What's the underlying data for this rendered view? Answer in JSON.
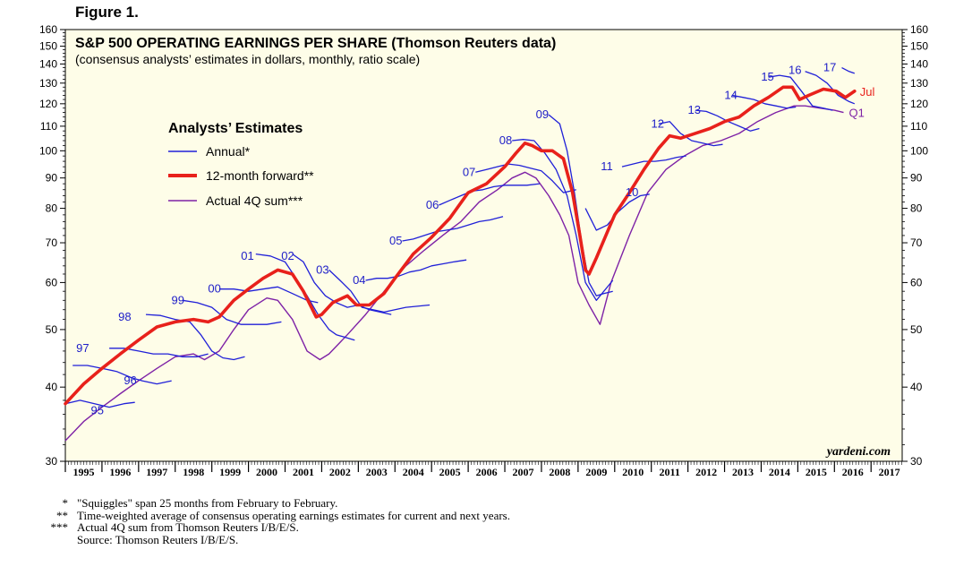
{
  "figure_label": "Figure 1.",
  "watermark": "yardeni.com",
  "colors": {
    "plot_bg": "#fefde8",
    "annual": "#2020d8",
    "forward": "#e8211b",
    "actual": "#7e22a6",
    "annual_label": "#2020c8",
    "series_label_red": "#e8211b",
    "series_label_purple": "#7e22a6"
  },
  "footnotes": [
    {
      "mark": "*",
      "text": "\"Squiggles\" span 25 months from February to February."
    },
    {
      "mark": "**",
      "text": "Time-weighted average of consensus operating earnings estimates for current and next years."
    },
    {
      "mark": "***",
      "text": "Actual 4Q sum from Thomson Reuters I/B/E/S."
    },
    {
      "mark": "",
      "text": "Source: Thomson Reuters I/B/E/S."
    }
  ],
  "chart_data": {
    "type": "line",
    "title": "S&P 500 OPERATING EARNINGS PER SHARE (Thomson Reuters data)",
    "subtitle": "(consensus analysts’ estimates in dollars, monthly, ratio scale)",
    "scale": "log",
    "ylim": [
      30,
      160
    ],
    "y_ticks": [
      30,
      40,
      50,
      60,
      70,
      80,
      90,
      100,
      110,
      120,
      130,
      140,
      150,
      160
    ],
    "xlim": [
      1995.0,
      2017.85
    ],
    "x_ticks": [
      "1995",
      "1996",
      "1997",
      "1998",
      "1999",
      "2000",
      "2001",
      "2002",
      "2003",
      "2004",
      "2005",
      "2006",
      "2007",
      "2008",
      "2009",
      "2010",
      "2011",
      "2012",
      "2013",
      "2014",
      "2015",
      "2016",
      "2017"
    ],
    "legend": {
      "title": "Analysts’ Estimates",
      "position": "upper-left",
      "entries": [
        {
          "label": "Annual*",
          "color": "#2020d8"
        },
        {
          "label": "12-month forward**",
          "color": "#e8211b"
        },
        {
          "label": "Actual 4Q sum***",
          "color": "#7e22a6"
        }
      ]
    },
    "end_labels": [
      {
        "text": "Jul",
        "x": 2016.55,
        "y": 126,
        "color": "#e8211b"
      },
      {
        "text": "Q1",
        "x": 2016.25,
        "y": 116,
        "color": "#7e22a6"
      }
    ],
    "forward": {
      "name": "12-month forward**",
      "x": [
        1995.0,
        1995.5,
        1996.0,
        1996.5,
        1997.0,
        1997.5,
        1998.0,
        1998.5,
        1998.9,
        1999.2,
        1999.6,
        2000.0,
        2000.4,
        2000.8,
        2001.2,
        2001.5,
        2001.85,
        2002.0,
        2002.3,
        2002.7,
        2002.95,
        2003.3,
        2003.7,
        2004.0,
        2004.5,
        2005.0,
        2005.5,
        2006.0,
        2006.5,
        2007.0,
        2007.3,
        2007.55,
        2007.75,
        2008.0,
        2008.3,
        2008.6,
        2008.85,
        2009.05,
        2009.2,
        2009.3,
        2009.5,
        2009.8,
        2010.0,
        2010.4,
        2010.8,
        2011.2,
        2011.5,
        2011.8,
        2012.2,
        2012.6,
        2013.0,
        2013.4,
        2013.8,
        2014.2,
        2014.6,
        2014.85,
        2015.05,
        2015.3,
        2015.7,
        2016.05,
        2016.3,
        2016.55
      ],
      "y": [
        37.5,
        40.5,
        43,
        45.5,
        48,
        50.5,
        51.5,
        52,
        51.5,
        52.5,
        56,
        58.5,
        61,
        63,
        62,
        58,
        52.5,
        53,
        55.5,
        57,
        55,
        55,
        57.5,
        61,
        67,
        71.5,
        77,
        85,
        88,
        94,
        99,
        103,
        102,
        100,
        100,
        97,
        85,
        72,
        63,
        62,
        66,
        73,
        78,
        85,
        93,
        101,
        106,
        105,
        107,
        109,
        112,
        114,
        119,
        123,
        128,
        128,
        122,
        124,
        127,
        126,
        123,
        126
      ]
    },
    "actual": {
      "name": "Actual 4Q sum***",
      "x": [
        1995.0,
        1995.5,
        1996.0,
        1996.5,
        1997.0,
        1997.5,
        1998.0,
        1998.5,
        1998.8,
        1999.2,
        1999.6,
        2000.0,
        2000.5,
        2000.8,
        2001.2,
        2001.6,
        2001.95,
        2002.2,
        2002.7,
        2003.2,
        2003.8,
        2004.3,
        2004.8,
        2005.3,
        2005.8,
        2006.3,
        2006.8,
        2007.2,
        2007.55,
        2007.85,
        2008.2,
        2008.5,
        2008.75,
        2009.0,
        2009.3,
        2009.6,
        2009.9,
        2010.4,
        2010.9,
        2011.4,
        2011.9,
        2012.4,
        2012.9,
        2013.4,
        2013.9,
        2014.4,
        2014.9,
        2015.2,
        2015.6,
        2016.0,
        2016.25
      ],
      "y": [
        32.5,
        35,
        37,
        39,
        41,
        43,
        45,
        45.5,
        44.5,
        46,
        50,
        54,
        56.5,
        56,
        52,
        46,
        44.5,
        45.5,
        49,
        53,
        59,
        64,
        68,
        72,
        76,
        82,
        86,
        90,
        92,
        90,
        84,
        78,
        72,
        60,
        55,
        51,
        60,
        72,
        85,
        93,
        98,
        102,
        104,
        107,
        112,
        116,
        119,
        119,
        118,
        117,
        116
      ]
    },
    "annual": [
      {
        "label": "95",
        "label_x": 1996.05,
        "label_y": 36.5,
        "x": [
          1995.0,
          1995.4,
          1995.8,
          1996.2,
          1996.6,
          1996.9
        ],
        "y": [
          37.5,
          38,
          37.5,
          37,
          37.5,
          37.7
        ]
      },
      {
        "label": "96",
        "label_x": 1996.95,
        "label_y": 41,
        "x": [
          1995.2,
          1995.6,
          1996.0,
          1996.4,
          1996.8,
          1997.1,
          1997.5,
          1997.9
        ],
        "y": [
          43.5,
          43.5,
          43,
          42.5,
          41.5,
          41,
          40.5,
          41
        ]
      },
      {
        "label": "97",
        "label_x": 1995.65,
        "label_y": 46.5,
        "x": [
          1996.2,
          1996.6,
          1997.0,
          1997.4,
          1997.8,
          1998.2,
          1998.6,
          1998.9
        ],
        "y": [
          46.5,
          46.5,
          46,
          45.5,
          45.5,
          45,
          45,
          45.5
        ]
      },
      {
        "label": "98",
        "label_x": 1996.8,
        "label_y": 52.5,
        "x": [
          1997.2,
          1997.6,
          1998.0,
          1998.4,
          1998.7,
          1999.0,
          1999.3,
          1999.6,
          1999.9
        ],
        "y": [
          53,
          52.8,
          52,
          51.5,
          49,
          46,
          44.8,
          44.5,
          45
        ]
      },
      {
        "label": "99",
        "label_x": 1998.25,
        "label_y": 56,
        "x": [
          1998.2,
          1998.6,
          1999.0,
          1999.4,
          1999.8,
          2000.2,
          2000.5,
          2000.9
        ],
        "y": [
          56,
          55.5,
          54.5,
          52,
          51,
          51,
          51,
          51.5
        ]
      },
      {
        "label": "00",
        "label_x": 1999.25,
        "label_y": 58.5,
        "x": [
          1999.2,
          1999.6,
          2000.0,
          2000.4,
          2000.8,
          2001.2,
          2001.6,
          2001.9
        ],
        "y": [
          58.5,
          58.5,
          58,
          58.5,
          59,
          57.5,
          56,
          55.5
        ]
      },
      {
        "label": "01",
        "label_x": 2000.15,
        "label_y": 66.5,
        "x": [
          2000.2,
          2000.6,
          2001.0,
          2001.3,
          2001.6,
          2001.9,
          2002.2,
          2002.4,
          2002.9
        ],
        "y": [
          67,
          66.5,
          65,
          61,
          57,
          53,
          50,
          49,
          48
        ]
      },
      {
        "label": "02",
        "label_x": 2001.25,
        "label_y": 66.5,
        "x": [
          2001.2,
          2001.5,
          2001.8,
          2002.1,
          2002.4,
          2002.7,
          2003.0,
          2003.3,
          2003.9
        ],
        "y": [
          67,
          65,
          60,
          57,
          55.5,
          54.5,
          55,
          54,
          53
        ]
      },
      {
        "label": "03",
        "label_x": 2002.2,
        "label_y": 63,
        "x": [
          2002.2,
          2002.5,
          2002.8,
          2003.1,
          2003.4,
          2003.7,
          2004.0,
          2004.3,
          2004.95
        ],
        "y": [
          63,
          60.5,
          58,
          54.5,
          54,
          53.5,
          54,
          54.5,
          55
        ]
      },
      {
        "label": "04",
        "label_x": 2003.2,
        "label_y": 60.5,
        "x": [
          2003.2,
          2003.5,
          2003.8,
          2004.1,
          2004.4,
          2004.7,
          2005.0,
          2005.3,
          2005.6,
          2005.95
        ],
        "y": [
          60.5,
          61,
          61,
          61.5,
          62.5,
          63,
          64,
          64.5,
          65,
          65.5
        ]
      },
      {
        "label": "05",
        "label_x": 2004.2,
        "label_y": 70.5,
        "x": [
          2004.2,
          2004.5,
          2004.8,
          2005.1,
          2005.4,
          2005.7,
          2006.0,
          2006.3,
          2006.6,
          2006.95
        ],
        "y": [
          70.5,
          71,
          72,
          73,
          73.5,
          74,
          75,
          76,
          76.5,
          77.5
        ]
      },
      {
        "label": "06",
        "label_x": 2005.2,
        "label_y": 81,
        "x": [
          2005.2,
          2005.5,
          2005.8,
          2006.1,
          2006.4,
          2006.7,
          2007.0,
          2007.3,
          2007.6,
          2007.95
        ],
        "y": [
          81,
          82.5,
          84,
          85.5,
          86,
          87,
          87.5,
          87.5,
          87.5,
          88
        ]
      },
      {
        "label": "07",
        "label_x": 2006.2,
        "label_y": 92,
        "x": [
          2006.2,
          2006.5,
          2006.8,
          2007.1,
          2007.4,
          2007.7,
          2008.0,
          2008.3,
          2008.6,
          2008.95
        ],
        "y": [
          92,
          93,
          94,
          95,
          94.5,
          93.5,
          92.5,
          89,
          85,
          86
        ]
      },
      {
        "label": "08",
        "label_x": 2007.2,
        "label_y": 104,
        "x": [
          2007.2,
          2007.5,
          2007.8,
          2008.1,
          2008.4,
          2008.7,
          2008.95,
          2009.2,
          2009.5,
          2009.95
        ],
        "y": [
          104,
          104.5,
          104,
          99,
          93,
          84,
          72,
          60,
          56,
          60.5
        ]
      },
      {
        "label": "09",
        "label_x": 2008.2,
        "label_y": 115,
        "x": [
          2008.2,
          2008.5,
          2008.7,
          2008.9,
          2009.1,
          2009.3,
          2009.5,
          2009.7,
          2009.95
        ],
        "y": [
          115,
          111,
          100,
          85,
          70,
          60,
          57,
          57.5,
          58
        ]
      },
      {
        "label": "10",
        "label_x": 2010.65,
        "label_y": 85,
        "x": [
          2009.2,
          2009.5,
          2009.8,
          2010.1,
          2010.4,
          2010.7,
          2010.95
        ],
        "y": [
          80,
          73.5,
          75,
          79,
          82,
          84,
          84.5
        ]
      },
      {
        "label": "11",
        "label_x": 2009.95,
        "label_y": 94,
        "x": [
          2010.2,
          2010.5,
          2010.8,
          2011.1,
          2011.4,
          2011.7,
          2011.95
        ],
        "y": [
          94,
          95,
          96,
          96,
          96.5,
          97.5,
          98
        ]
      },
      {
        "label": "12",
        "label_x": 2011.35,
        "label_y": 111,
        "x": [
          2011.2,
          2011.5,
          2011.8,
          2012.1,
          2012.4,
          2012.7,
          2012.95
        ],
        "y": [
          111,
          112,
          107,
          104,
          103,
          102,
          102.5
        ]
      },
      {
        "label": "13",
        "label_x": 2012.35,
        "label_y": 117,
        "x": [
          2012.2,
          2012.5,
          2012.8,
          2013.1,
          2013.4,
          2013.7,
          2013.95
        ],
        "y": [
          117,
          116.5,
          114.5,
          112,
          110,
          108,
          109
        ]
      },
      {
        "label": "14",
        "label_x": 2013.35,
        "label_y": 124,
        "x": [
          2013.2,
          2013.5,
          2013.8,
          2014.1,
          2014.4,
          2014.7,
          2014.95
        ],
        "y": [
          124,
          123,
          122,
          120,
          119,
          118,
          118.5
        ]
      },
      {
        "label": "15",
        "label_x": 2014.35,
        "label_y": 133,
        "x": [
          2014.2,
          2014.5,
          2014.8,
          2015.1,
          2015.4,
          2015.7,
          2015.95
        ],
        "y": [
          133,
          134,
          133,
          126,
          119,
          118,
          117
        ]
      },
      {
        "label": "16",
        "label_x": 2015.1,
        "label_y": 136.5,
        "x": [
          2015.2,
          2015.5,
          2015.8,
          2016.1,
          2016.4,
          2016.55
        ],
        "y": [
          136,
          134,
          130,
          124,
          121,
          120
        ]
      },
      {
        "label": "17",
        "label_x": 2016.05,
        "label_y": 138,
        "x": [
          2016.2,
          2016.4,
          2016.55
        ],
        "y": [
          138,
          136,
          135
        ]
      }
    ]
  }
}
